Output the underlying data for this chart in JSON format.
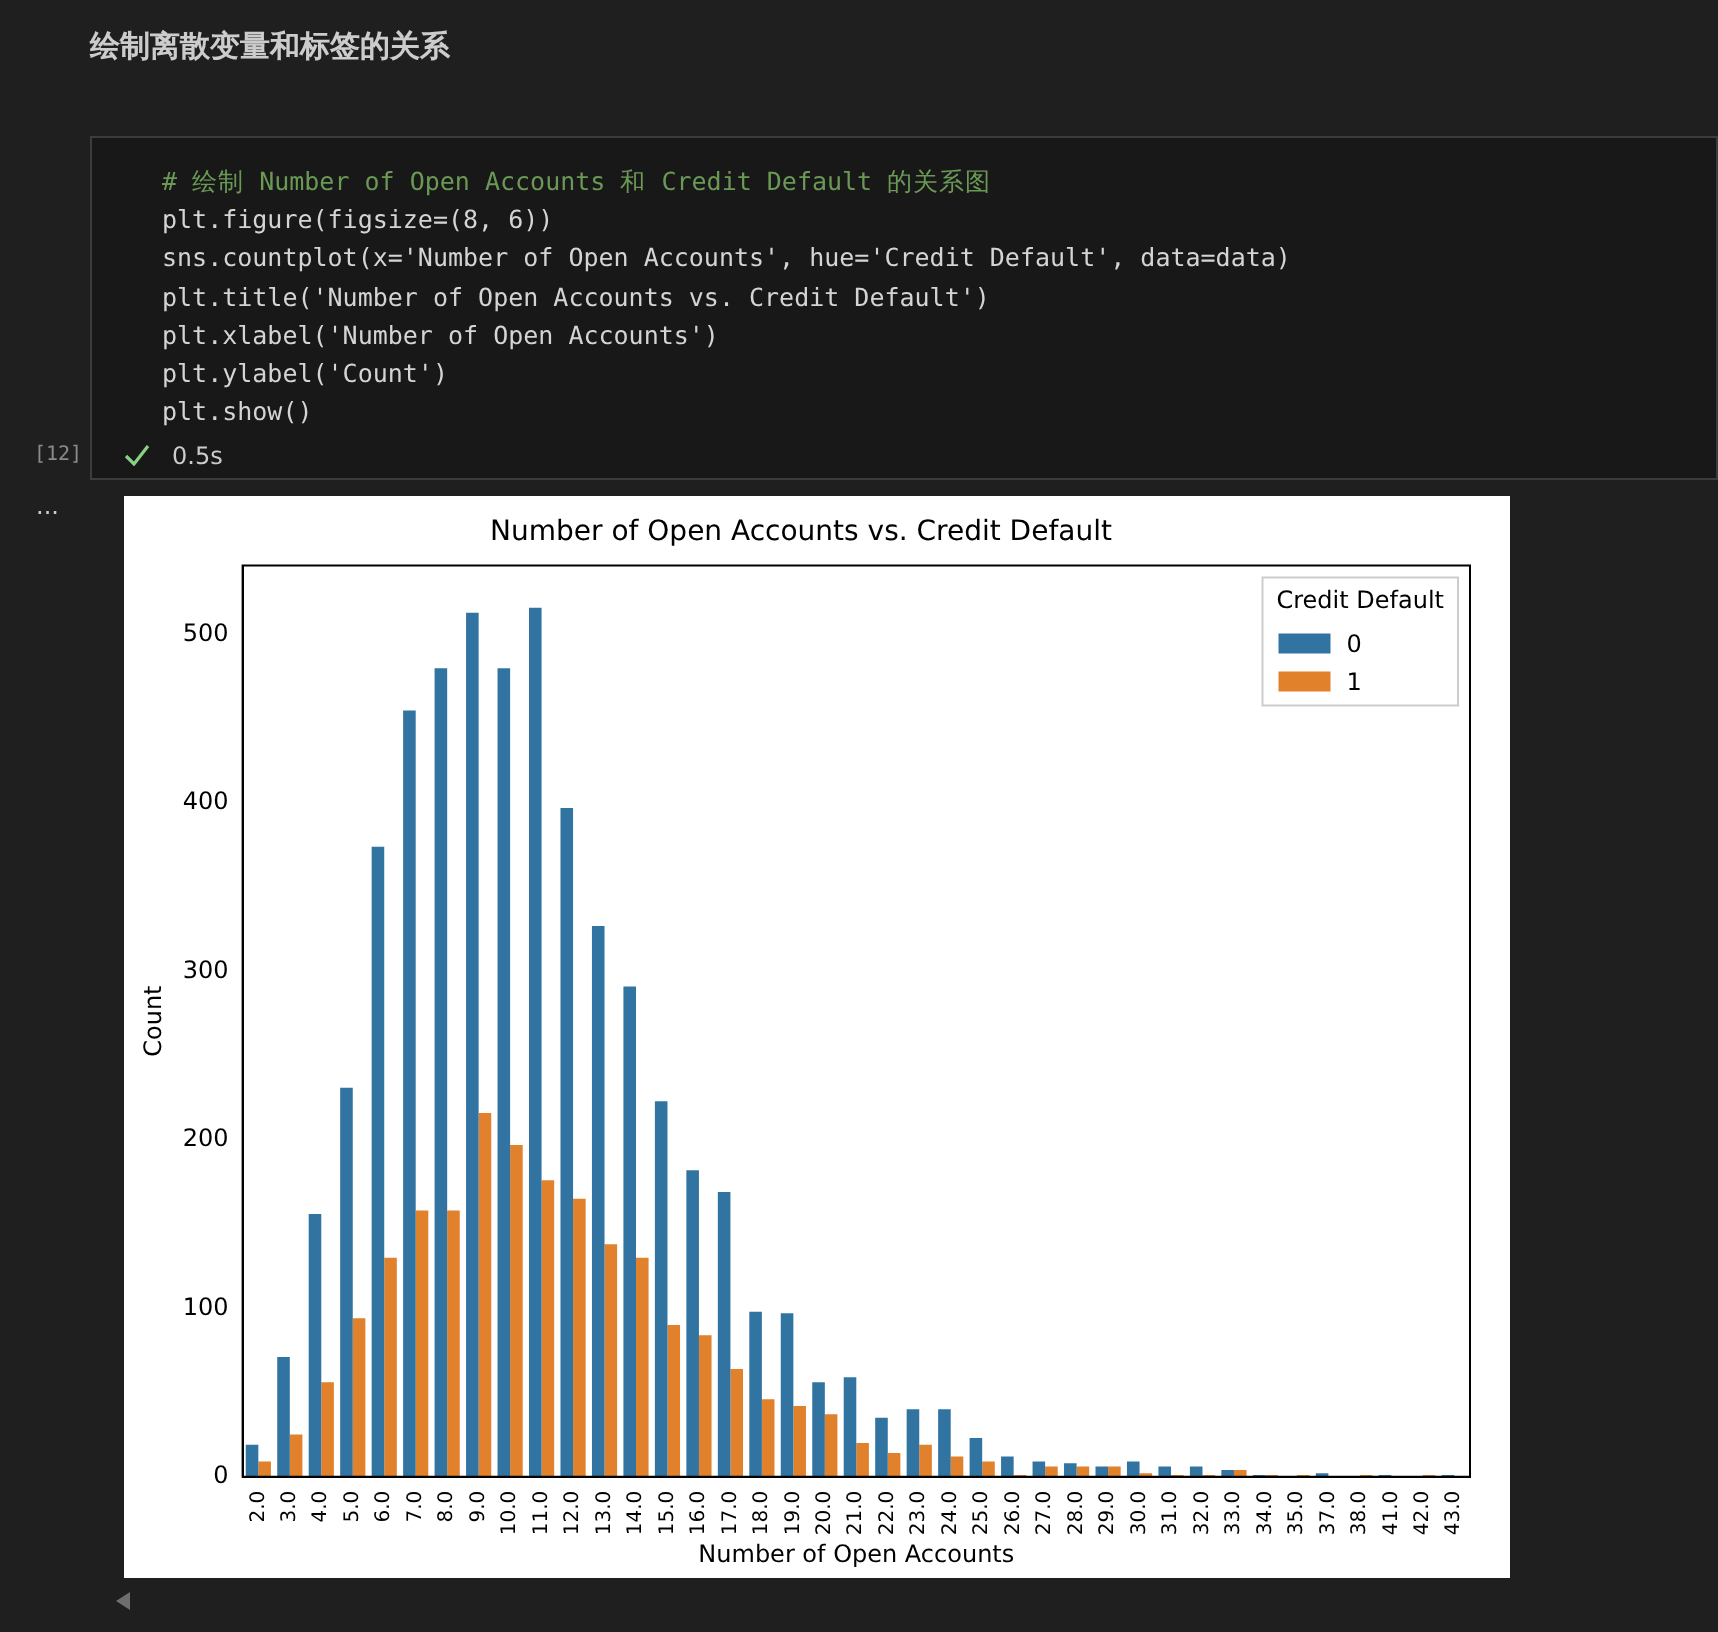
{
  "chart_data": {
    "type": "bar",
    "title": "Number of Open Accounts vs. Credit Default",
    "xlabel": "Number of Open Accounts",
    "ylabel": "Count",
    "legend_title": "Credit Default",
    "annotations": [
      "绘制离散变量和标签的关系",
      "# 绘制 Number of Open Accounts 和 Credit Default 的关系图",
      "plt.figure(figsize=(8, 6))",
      "sns.countplot(x='Number of Open Accounts', hue='Credit Default', data=data)",
      "plt.title('Number of Open Accounts vs. Credit Default')",
      "plt.xlabel('Number of Open Accounts')",
      "plt.ylabel('Count')",
      "plt.show()",
      "[12]",
      "0.5s",
      "..."
    ],
    "categories": [
      "2.0",
      "3.0",
      "4.0",
      "5.0",
      "6.0",
      "7.0",
      "8.0",
      "9.0",
      "10.0",
      "11.0",
      "12.0",
      "13.0",
      "14.0",
      "15.0",
      "16.0",
      "17.0",
      "18.0",
      "19.0",
      "20.0",
      "21.0",
      "22.0",
      "23.0",
      "24.0",
      "25.0",
      "26.0",
      "27.0",
      "28.0",
      "29.0",
      "30.0",
      "31.0",
      "32.0",
      "33.0",
      "34.0",
      "35.0",
      "37.0",
      "38.0",
      "41.0",
      "42.0",
      "43.0"
    ],
    "series": [
      {
        "name": "0",
        "color": "#3274a1",
        "values": [
          19,
          71,
          156,
          231,
          374,
          455,
          480,
          513,
          480,
          516,
          397,
          327,
          291,
          223,
          182,
          169,
          98,
          97,
          56,
          59,
          35,
          40,
          40,
          23,
          12,
          9,
          8,
          6,
          9,
          6,
          6,
          4,
          1,
          0,
          2,
          0,
          1,
          0,
          1
        ]
      },
      {
        "name": "1",
        "color": "#e1812c",
        "values": [
          9,
          25,
          56,
          94,
          130,
          158,
          158,
          216,
          197,
          176,
          165,
          138,
          130,
          90,
          84,
          64,
          46,
          42,
          37,
          20,
          14,
          19,
          12,
          9,
          1,
          6,
          6,
          6,
          2,
          1,
          1,
          4,
          1,
          1,
          0,
          1,
          0,
          1,
          0
        ]
      }
    ],
    "ylim": [
      0,
      541
    ],
    "yticks": [
      0,
      100,
      200,
      300,
      400,
      500
    ],
    "grid": false,
    "legend": "top right"
  }
}
